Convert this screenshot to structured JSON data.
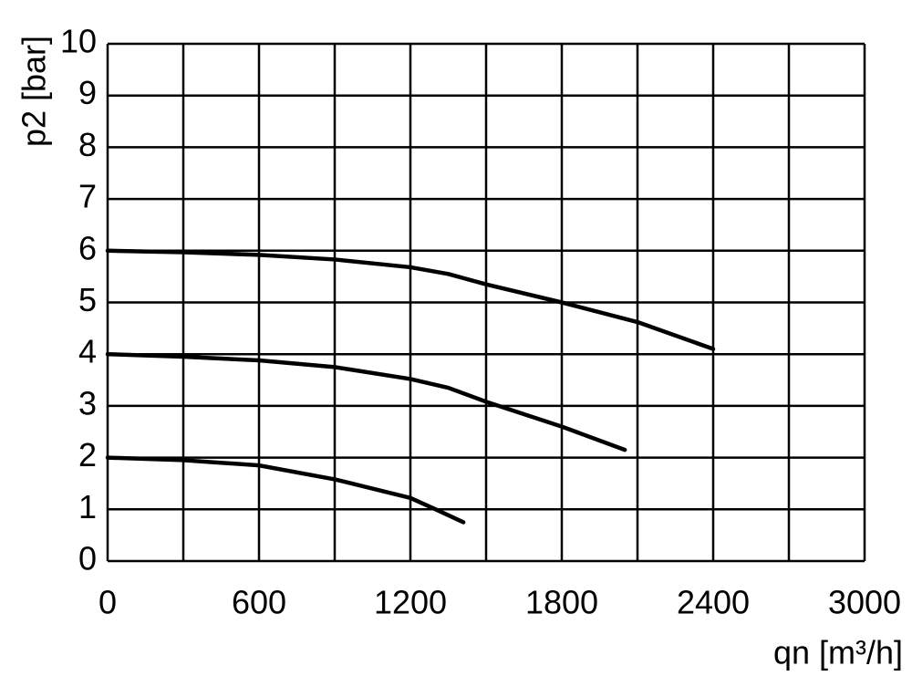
{
  "chart_data": {
    "type": "line",
    "x_label": "qn [m³/h]",
    "y_label": "p2 [bar]",
    "xlim": [
      0,
      3000
    ],
    "ylim": [
      0,
      10
    ],
    "xticks": [
      0,
      600,
      1200,
      1800,
      2400,
      3000
    ],
    "xminorticks": [
      300,
      900,
      1500,
      2100,
      2700
    ],
    "yticks": [
      0,
      1,
      2,
      3,
      4,
      5,
      6,
      7,
      8,
      9,
      10
    ],
    "grid": true,
    "series": [
      {
        "color": "#000000",
        "x": [
          0,
          300,
          600,
          900,
          1200,
          1350,
          1500,
          1800,
          2100,
          2400
        ],
        "values": [
          6,
          5.97,
          5.92,
          5.83,
          5.68,
          5.55,
          5.35,
          5.0,
          4.62,
          4.1
        ]
      },
      {
        "color": "#000000",
        "x": [
          0,
          300,
          600,
          900,
          1200,
          1350,
          1500,
          1800,
          2050
        ],
        "values": [
          4,
          3.95,
          3.88,
          3.75,
          3.52,
          3.35,
          3.08,
          2.6,
          2.15
        ]
      },
      {
        "color": "#000000",
        "x": [
          0,
          300,
          600,
          900,
          1200,
          1300,
          1410
        ],
        "values": [
          2,
          1.95,
          1.85,
          1.58,
          1.22,
          1.0,
          0.75
        ]
      }
    ]
  }
}
